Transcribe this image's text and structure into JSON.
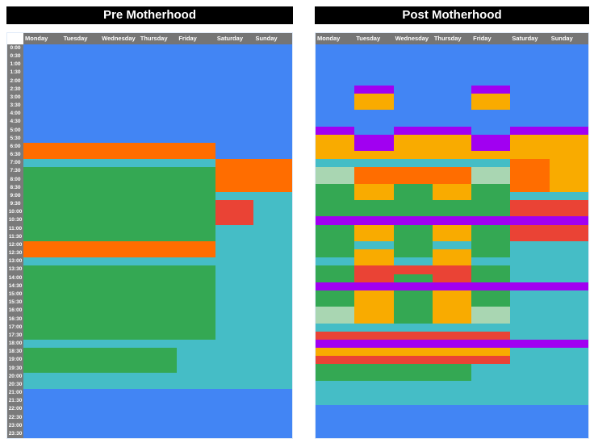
{
  "colors": {
    "blue": "#4285F4",
    "teal": "#45BDC6",
    "green": "#34A853",
    "lightgreen": "#A9D6B2",
    "orange": "#FF6D00",
    "gold": "#F9AB00",
    "red": "#EA4335",
    "purple": "#A100F1",
    "title_bg": "#000000",
    "title_fg": "#FFFFFF",
    "header_gray": "#757575",
    "time_axis_gray": "#7A7A7A"
  },
  "time_labels": [
    "0:00",
    "0:30",
    "1:00",
    "1:30",
    "2:00",
    "2:30",
    "3:00",
    "3:30",
    "4:00",
    "4:30",
    "5:00",
    "5:30",
    "6:00",
    "6:30",
    "7:00",
    "7:30",
    "8:00",
    "8:30",
    "9:00",
    "9:30",
    "10:00",
    "10:30",
    "11:00",
    "11:30",
    "12:00",
    "12:30",
    "13:00",
    "13:30",
    "14:00",
    "14:30",
    "15:00",
    "15:30",
    "16:00",
    "16:30",
    "17:00",
    "17:30",
    "18:00",
    "18:30",
    "19:00",
    "19:30",
    "20:00",
    "20:30",
    "21:00",
    "21:30",
    "22:00",
    "22:30",
    "23:00",
    "23:30"
  ],
  "chart_data": [
    {
      "type": "heatmap",
      "subtype": "weekly-schedule",
      "title": "Pre Motherhood",
      "has_time_axis": true,
      "x_categories": [
        "Monday",
        "Tuesday",
        "Wednesday",
        "Thursday",
        "Friday",
        "Saturday",
        "Sunday"
      ],
      "y_axis": {
        "start": "0:00",
        "end": "24:00",
        "step_minutes": 30
      },
      "legend": "none",
      "segments_by_day": {
        "Monday": [
          [
            0,
            6,
            "blue"
          ],
          [
            6,
            7,
            "orange"
          ],
          [
            7,
            7.5,
            "teal"
          ],
          [
            7.5,
            12,
            "green"
          ],
          [
            12,
            13,
            "orange"
          ],
          [
            13,
            13.5,
            "teal"
          ],
          [
            13.5,
            18,
            "green"
          ],
          [
            18,
            18.5,
            "teal"
          ],
          [
            18.5,
            20,
            "green"
          ],
          [
            20,
            21,
            "teal"
          ],
          [
            21,
            24,
            "blue"
          ]
        ],
        "Tuesday": [
          [
            0,
            6,
            "blue"
          ],
          [
            6,
            7,
            "orange"
          ],
          [
            7,
            7.5,
            "teal"
          ],
          [
            7.5,
            12,
            "green"
          ],
          [
            12,
            13,
            "orange"
          ],
          [
            13,
            13.5,
            "teal"
          ],
          [
            13.5,
            18,
            "green"
          ],
          [
            18,
            18.5,
            "teal"
          ],
          [
            18.5,
            20,
            "green"
          ],
          [
            20,
            21,
            "teal"
          ],
          [
            21,
            24,
            "blue"
          ]
        ],
        "Wednesday": [
          [
            0,
            6,
            "blue"
          ],
          [
            6,
            7,
            "orange"
          ],
          [
            7,
            7.5,
            "teal"
          ],
          [
            7.5,
            12,
            "green"
          ],
          [
            12,
            13,
            "orange"
          ],
          [
            13,
            13.5,
            "teal"
          ],
          [
            13.5,
            18,
            "green"
          ],
          [
            18,
            18.5,
            "teal"
          ],
          [
            18.5,
            20,
            "green"
          ],
          [
            20,
            21,
            "teal"
          ],
          [
            21,
            24,
            "blue"
          ]
        ],
        "Thursday": [
          [
            0,
            6,
            "blue"
          ],
          [
            6,
            7,
            "orange"
          ],
          [
            7,
            7.5,
            "teal"
          ],
          [
            7.5,
            12,
            "green"
          ],
          [
            12,
            13,
            "orange"
          ],
          [
            13,
            13.5,
            "teal"
          ],
          [
            13.5,
            18,
            "green"
          ],
          [
            18,
            18.5,
            "teal"
          ],
          [
            18.5,
            20,
            "green"
          ],
          [
            20,
            21,
            "teal"
          ],
          [
            21,
            24,
            "blue"
          ]
        ],
        "Friday": [
          [
            0,
            6,
            "blue"
          ],
          [
            6,
            7,
            "orange"
          ],
          [
            7,
            7.5,
            "teal"
          ],
          [
            7.5,
            12,
            "green"
          ],
          [
            12,
            13,
            "orange"
          ],
          [
            13,
            13.5,
            "teal"
          ],
          [
            13.5,
            18,
            "green"
          ],
          [
            18,
            21,
            "teal"
          ],
          [
            21,
            24,
            "blue"
          ]
        ],
        "Saturday": [
          [
            0,
            7,
            "blue"
          ],
          [
            7,
            9,
            "orange"
          ],
          [
            9,
            9.5,
            "teal"
          ],
          [
            9.5,
            11,
            "red"
          ],
          [
            11,
            21,
            "teal"
          ],
          [
            21,
            24,
            "blue"
          ]
        ],
        "Sunday": [
          [
            0,
            7,
            "blue"
          ],
          [
            7,
            9,
            "orange"
          ],
          [
            9,
            21,
            "teal"
          ],
          [
            21,
            24,
            "blue"
          ]
        ]
      }
    },
    {
      "type": "heatmap",
      "subtype": "weekly-schedule",
      "title": "Post Motherhood",
      "has_time_axis": false,
      "x_categories": [
        "Monday",
        "Tuesday",
        "Wednesday",
        "Thursday",
        "Friday",
        "Saturday",
        "Sunday"
      ],
      "y_axis": {
        "start": "0:00",
        "end": "24:00",
        "step_minutes": 30
      },
      "legend": "none",
      "segments_by_day": {
        "Monday": [
          [
            0,
            5,
            "blue"
          ],
          [
            5,
            5.5,
            "purple"
          ],
          [
            5.5,
            7,
            "gold"
          ],
          [
            7,
            7.5,
            "teal"
          ],
          [
            7.5,
            8.5,
            "lightgreen"
          ],
          [
            8.5,
            10.5,
            "green"
          ],
          [
            10.5,
            11,
            "purple"
          ],
          [
            11,
            13,
            "green"
          ],
          [
            13,
            13.5,
            "teal"
          ],
          [
            13.5,
            14.5,
            "green"
          ],
          [
            14.5,
            15,
            "purple"
          ],
          [
            15,
            16,
            "green"
          ],
          [
            16,
            17,
            "lightgreen"
          ],
          [
            17,
            17.5,
            "teal"
          ],
          [
            17.5,
            18,
            "red"
          ],
          [
            18,
            18.5,
            "purple"
          ],
          [
            18.5,
            19,
            "gold"
          ],
          [
            19,
            19.5,
            "red"
          ],
          [
            19.5,
            20.5,
            "green"
          ],
          [
            20.5,
            22,
            "teal"
          ],
          [
            22,
            24,
            "blue"
          ]
        ],
        "Tuesday": [
          [
            0,
            2.5,
            "blue"
          ],
          [
            2.5,
            3,
            "purple"
          ],
          [
            3,
            4,
            "gold"
          ],
          [
            4,
            5.5,
            "blue"
          ],
          [
            5.5,
            6.5,
            "purple"
          ],
          [
            6.5,
            7,
            "gold"
          ],
          [
            7,
            7.5,
            "teal"
          ],
          [
            7.5,
            8.5,
            "orange"
          ],
          [
            8.5,
            9.5,
            "gold"
          ],
          [
            9.5,
            10.5,
            "green"
          ],
          [
            10.5,
            11,
            "purple"
          ],
          [
            11,
            12,
            "gold"
          ],
          [
            12,
            12.5,
            "teal"
          ],
          [
            12.5,
            13.5,
            "gold"
          ],
          [
            13.5,
            14.5,
            "red"
          ],
          [
            14.5,
            15,
            "purple"
          ],
          [
            15,
            17,
            "gold"
          ],
          [
            17,
            17.5,
            "teal"
          ],
          [
            17.5,
            18,
            "red"
          ],
          [
            18,
            18.5,
            "purple"
          ],
          [
            18.5,
            19,
            "gold"
          ],
          [
            19,
            19.5,
            "red"
          ],
          [
            19.5,
            20.5,
            "green"
          ],
          [
            20.5,
            22,
            "teal"
          ],
          [
            22,
            24,
            "blue"
          ]
        ],
        "Wednesday": [
          [
            0,
            5,
            "blue"
          ],
          [
            5,
            5.5,
            "purple"
          ],
          [
            5.5,
            7,
            "gold"
          ],
          [
            7,
            7.5,
            "teal"
          ],
          [
            7.5,
            8.5,
            "orange"
          ],
          [
            8.5,
            10.5,
            "green"
          ],
          [
            10.5,
            11,
            "purple"
          ],
          [
            11,
            13,
            "green"
          ],
          [
            13,
            13.5,
            "teal"
          ],
          [
            13.5,
            14,
            "red"
          ],
          [
            14,
            14.5,
            "green"
          ],
          [
            14.5,
            15,
            "purple"
          ],
          [
            15,
            17,
            "green"
          ],
          [
            17,
            17.5,
            "teal"
          ],
          [
            17.5,
            18,
            "red"
          ],
          [
            18,
            18.5,
            "purple"
          ],
          [
            18.5,
            19,
            "gold"
          ],
          [
            19,
            19.5,
            "red"
          ],
          [
            19.5,
            20.5,
            "green"
          ],
          [
            20.5,
            22,
            "teal"
          ],
          [
            22,
            24,
            "blue"
          ]
        ],
        "Thursday": [
          [
            0,
            5,
            "blue"
          ],
          [
            5,
            5.5,
            "purple"
          ],
          [
            5.5,
            7,
            "gold"
          ],
          [
            7,
            7.5,
            "teal"
          ],
          [
            7.5,
            8.5,
            "orange"
          ],
          [
            8.5,
            9.5,
            "gold"
          ],
          [
            9.5,
            10.5,
            "green"
          ],
          [
            10.5,
            11,
            "purple"
          ],
          [
            11,
            12,
            "gold"
          ],
          [
            12,
            12.5,
            "teal"
          ],
          [
            12.5,
            13.5,
            "gold"
          ],
          [
            13.5,
            14.5,
            "red"
          ],
          [
            14.5,
            15,
            "purple"
          ],
          [
            15,
            17,
            "gold"
          ],
          [
            17,
            17.5,
            "teal"
          ],
          [
            17.5,
            18,
            "red"
          ],
          [
            18,
            18.5,
            "purple"
          ],
          [
            18.5,
            19,
            "gold"
          ],
          [
            19,
            19.5,
            "red"
          ],
          [
            19.5,
            20.5,
            "green"
          ],
          [
            20.5,
            22,
            "teal"
          ],
          [
            22,
            24,
            "blue"
          ]
        ],
        "Friday": [
          [
            0,
            2.5,
            "blue"
          ],
          [
            2.5,
            3,
            "purple"
          ],
          [
            3,
            4,
            "gold"
          ],
          [
            4,
            5.5,
            "blue"
          ],
          [
            5.5,
            6.5,
            "purple"
          ],
          [
            6.5,
            7,
            "gold"
          ],
          [
            7,
            7.5,
            "teal"
          ],
          [
            7.5,
            8.5,
            "lightgreen"
          ],
          [
            8.5,
            10.5,
            "green"
          ],
          [
            10.5,
            11,
            "purple"
          ],
          [
            11,
            13,
            "green"
          ],
          [
            13,
            13.5,
            "teal"
          ],
          [
            13.5,
            14.5,
            "green"
          ],
          [
            14.5,
            15,
            "purple"
          ],
          [
            15,
            16,
            "green"
          ],
          [
            16,
            17,
            "lightgreen"
          ],
          [
            17,
            17.5,
            "teal"
          ],
          [
            17.5,
            18,
            "red"
          ],
          [
            18,
            18.5,
            "purple"
          ],
          [
            18.5,
            19,
            "gold"
          ],
          [
            19,
            19.5,
            "red"
          ],
          [
            19.5,
            22,
            "teal"
          ],
          [
            22,
            24,
            "blue"
          ]
        ],
        "Saturday": [
          [
            0,
            5,
            "blue"
          ],
          [
            5,
            5.5,
            "purple"
          ],
          [
            5.5,
            7,
            "gold"
          ],
          [
            7,
            9,
            "orange"
          ],
          [
            9,
            9.5,
            "teal"
          ],
          [
            9.5,
            10.5,
            "red"
          ],
          [
            10.5,
            11,
            "purple"
          ],
          [
            11,
            12,
            "red"
          ],
          [
            12,
            14.5,
            "teal"
          ],
          [
            14.5,
            15,
            "purple"
          ],
          [
            15,
            18,
            "teal"
          ],
          [
            18,
            18.5,
            "purple"
          ],
          [
            18.5,
            22,
            "teal"
          ],
          [
            22,
            24,
            "blue"
          ]
        ],
        "Sunday": [
          [
            0,
            5,
            "blue"
          ],
          [
            5,
            5.5,
            "purple"
          ],
          [
            5.5,
            9,
            "gold"
          ],
          [
            9,
            9.5,
            "teal"
          ],
          [
            9.5,
            10.5,
            "red"
          ],
          [
            10.5,
            11,
            "purple"
          ],
          [
            11,
            12,
            "red"
          ],
          [
            12,
            14.5,
            "teal"
          ],
          [
            14.5,
            15,
            "purple"
          ],
          [
            15,
            18,
            "teal"
          ],
          [
            18,
            18.5,
            "purple"
          ],
          [
            18.5,
            22,
            "teal"
          ],
          [
            22,
            24,
            "blue"
          ]
        ]
      }
    }
  ]
}
